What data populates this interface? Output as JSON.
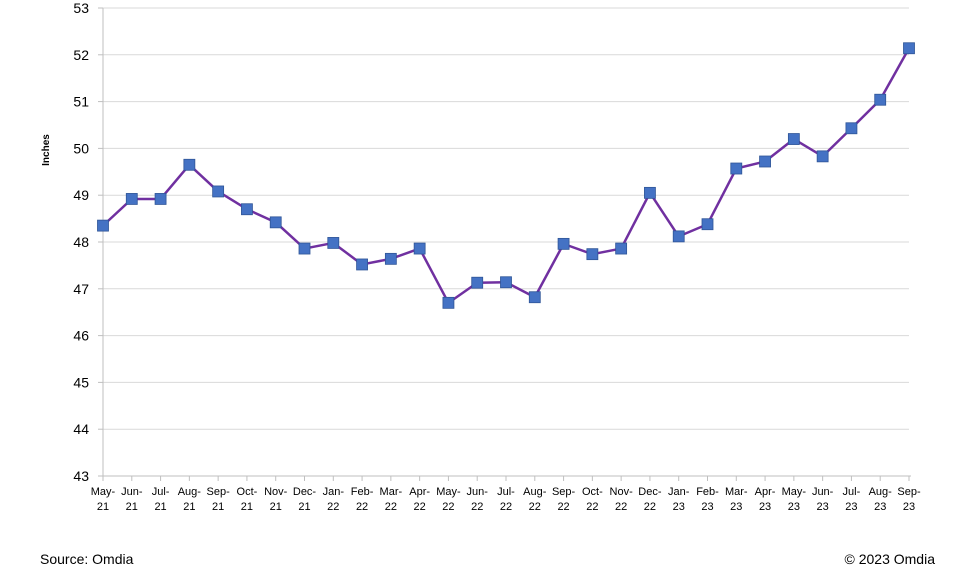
{
  "chart_data": {
    "type": "line",
    "title": "",
    "xlabel": "",
    "ylabel": "Inches",
    "ylim": [
      43,
      53
    ],
    "yticks": [
      "43",
      "44",
      "45",
      "46",
      "47",
      "48",
      "49",
      "50",
      "51",
      "52",
      "53"
    ],
    "grid": "horizontal",
    "categories": [
      {
        "m": "May-",
        "y": "21"
      },
      {
        "m": "Jun-",
        "y": "21"
      },
      {
        "m": "Jul-",
        "y": "21"
      },
      {
        "m": "Aug-",
        "y": "21"
      },
      {
        "m": "Sep-",
        "y": "21"
      },
      {
        "m": "Oct-",
        "y": "21"
      },
      {
        "m": "Nov-",
        "y": "21"
      },
      {
        "m": "Dec-",
        "y": "21"
      },
      {
        "m": "Jan-",
        "y": "22"
      },
      {
        "m": "Feb-",
        "y": "22"
      },
      {
        "m": "Mar-",
        "y": "22"
      },
      {
        "m": "Apr-",
        "y": "22"
      },
      {
        "m": "May-",
        "y": "22"
      },
      {
        "m": "Jun-",
        "y": "22"
      },
      {
        "m": "Jul-",
        "y": "22"
      },
      {
        "m": "Aug-",
        "y": "22"
      },
      {
        "m": "Sep-",
        "y": "22"
      },
      {
        "m": "Oct-",
        "y": "22"
      },
      {
        "m": "Nov-",
        "y": "22"
      },
      {
        "m": "Dec-",
        "y": "22"
      },
      {
        "m": "Jan-",
        "y": "23"
      },
      {
        "m": "Feb-",
        "y": "23"
      },
      {
        "m": "Mar-",
        "y": "23"
      },
      {
        "m": "Apr-",
        "y": "23"
      },
      {
        "m": "May-",
        "y": "23"
      },
      {
        "m": "Jun-",
        "y": "23"
      },
      {
        "m": "Jul-",
        "y": "23"
      },
      {
        "m": "Aug-",
        "y": "23"
      },
      {
        "m": "Sep-",
        "y": "23"
      }
    ],
    "series": [
      {
        "values": [
          48.35,
          48.92,
          48.92,
          49.65,
          49.08,
          48.7,
          48.42,
          47.86,
          47.98,
          47.52,
          47.64,
          47.86,
          46.7,
          47.13,
          47.14,
          46.82,
          47.96,
          47.74,
          47.86,
          49.05,
          48.12,
          48.38,
          49.57,
          49.72,
          50.2,
          49.83,
          50.43,
          51.04,
          52.14
        ],
        "line_color": "#7030a0",
        "marker_color": "#4472c4",
        "marker": "square"
      }
    ]
  },
  "footer": {
    "source": "Source: Omdia",
    "copyright": "© 2023 Omdia"
  }
}
